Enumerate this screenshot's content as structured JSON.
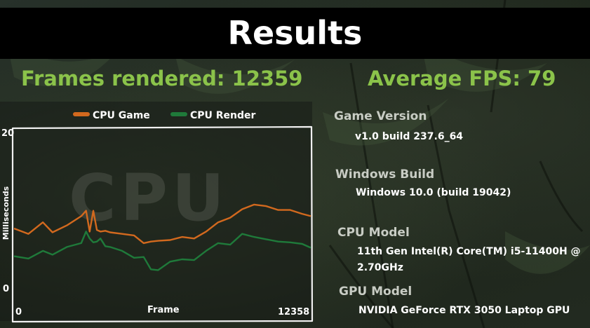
{
  "header": {
    "title": "Results"
  },
  "stats": {
    "frames_rendered": "Frames rendered: 12359",
    "average_fps": "Average FPS: 79"
  },
  "chart": {
    "watermark": "CPU",
    "legend": [
      {
        "name": "CPU Game",
        "color": "#d2691e"
      },
      {
        "name": "CPU Render",
        "color": "#1f7a3a"
      }
    ],
    "x_label": "Frame",
    "y_label": "Milliseconds",
    "x_tick_start": "0",
    "x_tick_end": "12358",
    "y_tick_top": "20",
    "y_tick_bottom": "0"
  },
  "chart_data": {
    "type": "line",
    "title": "",
    "xlabel": "Frame",
    "ylabel": "Milliseconds",
    "xlim": [
      0,
      12358
    ],
    "ylim": [
      0,
      20
    ],
    "grid": false,
    "legend_position": "top",
    "x": [
      0,
      600,
      1200,
      1600,
      2200,
      2800,
      3000,
      3150,
      3300,
      3450,
      3600,
      3800,
      4000,
      4500,
      5000,
      5400,
      5700,
      6000,
      6500,
      7000,
      7500,
      8000,
      8500,
      9000,
      9500,
      10000,
      10500,
      11000,
      11500,
      12000,
      12358
    ],
    "series": [
      {
        "name": "CPU Game",
        "values": [
          8.0,
          7.3,
          8.8,
          7.5,
          8.4,
          9.6,
          10.3,
          7.6,
          10.3,
          7.8,
          7.6,
          7.7,
          7.5,
          7.3,
          7.1,
          6.1,
          6.3,
          6.4,
          6.5,
          6.9,
          6.7,
          7.6,
          8.8,
          9.4,
          10.5,
          11.1,
          10.9,
          10.4,
          10.4,
          9.9,
          9.6
        ]
      },
      {
        "name": "CPU Render",
        "values": [
          4.4,
          4.1,
          5.1,
          4.6,
          5.6,
          6.1,
          7.6,
          6.7,
          6.2,
          6.3,
          6.7,
          5.7,
          5.6,
          5.1,
          4.2,
          4.3,
          2.7,
          2.6,
          3.7,
          4.0,
          3.9,
          5.1,
          6.1,
          5.9,
          7.3,
          6.9,
          6.6,
          6.3,
          6.2,
          6.0,
          5.5
        ]
      }
    ]
  },
  "info": {
    "game_version_label": "Game Version",
    "game_version_value": "v1.0 build 237.6_64",
    "windows_build_label": "Windows Build",
    "windows_build_value": "Windows 10.0 (build 19042)",
    "cpu_model_label": "CPU Model",
    "cpu_model_line1": "11th Gen Intel(R) Core(TM) i5-11400H @",
    "cpu_model_line2": "2.70GHz",
    "gpu_model_label": "GPU Model",
    "gpu_model_value": "NVIDIA GeForce RTX 3050 Laptop GPU"
  }
}
